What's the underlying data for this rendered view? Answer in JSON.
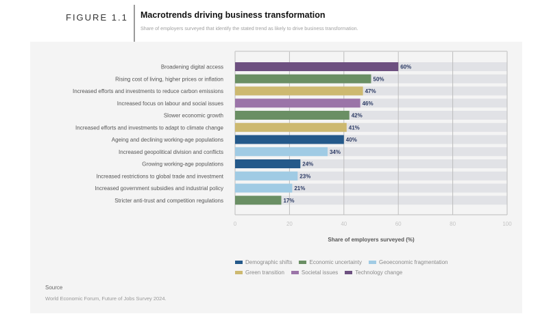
{
  "header": {
    "figure_label": "FIGURE 1.1",
    "title": "Macrotrends driving business transformation",
    "subtitle": "Share of employers surveyed that identify the stated trend as likely to drive business transformation."
  },
  "colors": {
    "panel_bg": "#f4f4f4",
    "track": "#e1e2e6",
    "grid": "#bdbdbd",
    "value_label": "#2b3a64"
  },
  "chart_data": {
    "type": "bar",
    "orientation": "horizontal",
    "title": "Macrotrends driving business transformation",
    "subtitle": "Share of employers surveyed that identify the stated trend as likely to drive business transformation.",
    "xlabel": "Share of employers surveyed (%)",
    "ylabel": "",
    "xlim": [
      0,
      100
    ],
    "xticks": [
      0,
      20,
      40,
      60,
      80,
      100
    ],
    "grid": true,
    "legend_position": "bottom",
    "value_suffix": "%",
    "categories": [
      "Broadening digital access",
      "Rising cost of living, higher prices or inflation",
      "Increased efforts and investments to reduce carbon emissions",
      "Increased focus on labour and social issues",
      "Slower economic growth",
      "Increased efforts and investments to adapt to climate change",
      "Ageing and declining working-age populations",
      "Increased geopolitical division and conflicts",
      "Growing working-age populations",
      "Increased restrictions to global trade and investment",
      "Increased government subsidies and industrial policy",
      "Stricter anti-trust and competition regulations"
    ],
    "values": [
      60,
      50,
      47,
      46,
      42,
      41,
      40,
      34,
      24,
      23,
      21,
      17
    ],
    "groups": [
      "Technology change",
      "Economic uncertainty",
      "Green transition",
      "Societal issues",
      "Economic uncertainty",
      "Green transition",
      "Demographic shifts",
      "Geoeconomic fragmentation",
      "Demographic shifts",
      "Geoeconomic fragmentation",
      "Geoeconomic fragmentation",
      "Economic uncertainty"
    ],
    "legend": [
      {
        "name": "Demographic shifts",
        "color": "#24598a"
      },
      {
        "name": "Economic uncertainty",
        "color": "#6a8f64"
      },
      {
        "name": "Geoeconomic fragmentation",
        "color": "#a0cbe4"
      },
      {
        "name": "Green transition",
        "color": "#cdb970"
      },
      {
        "name": "Societal issues",
        "color": "#9b74a8"
      },
      {
        "name": "Technology change",
        "color": "#6d5080"
      }
    ]
  },
  "source": {
    "heading": "Source",
    "text": "World Economic Forum, Future of Jobs Survey 2024."
  }
}
